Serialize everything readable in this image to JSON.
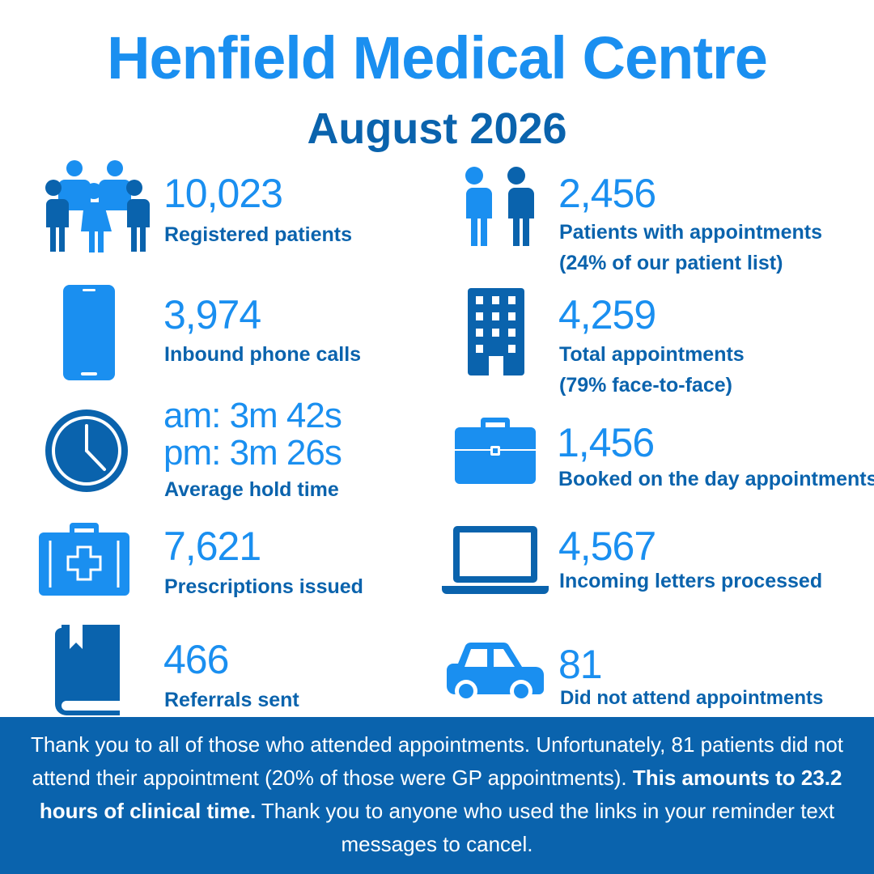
{
  "header": {
    "title": "Henfield Medical Centre",
    "subtitle": "August 2026"
  },
  "colors": {
    "light_blue": "#1a8ff0",
    "dark_blue": "#0a63ad",
    "footer_bg": "#0a63ad"
  },
  "stats": {
    "registered_patients": {
      "icon": "people-group-icon",
      "value": "10,023",
      "label": "Registered patients"
    },
    "patients_with_appointments": {
      "icon": "two-people-icon",
      "value": "2,456",
      "label": "Patients with appointments",
      "sublabel": "(24% of our patient list)"
    },
    "phone_calls": {
      "icon": "mobile-phone-icon",
      "value": "3,974",
      "label": "Inbound phone calls"
    },
    "total_appointments": {
      "icon": "building-icon",
      "value": "4,259",
      "label": "Total appointments",
      "sublabel": "(79% face-to-face)"
    },
    "hold_time": {
      "icon": "clock-icon",
      "value_am": "am: 3m 42s",
      "value_pm": "pm: 3m 26s",
      "label": "Average hold time"
    },
    "booked_on_day": {
      "icon": "briefcase-icon",
      "value": "1,456",
      "label": "Booked on the day appointments"
    },
    "prescriptions": {
      "icon": "medical-kit-icon",
      "value": "7,621",
      "label": "Prescriptions issued"
    },
    "letters": {
      "icon": "laptop-icon",
      "value": "4,567",
      "label": "Incoming letters processed"
    },
    "referrals": {
      "icon": "book-icon",
      "value": "466",
      "label": "Referrals sent"
    },
    "dna": {
      "icon": "car-icon",
      "value": "81",
      "label": "Did not attend appointments"
    }
  },
  "footer": {
    "text_1": "Thank you to all of those who attended appointments. Unfortunately, 81 patients did not attend their appointment (20% of those were GP appointments). ",
    "bold_text": "This amounts to 23.2 hours of clinical time.",
    "text_2": " Thank you to anyone who used the links in your reminder text messages to cancel."
  }
}
